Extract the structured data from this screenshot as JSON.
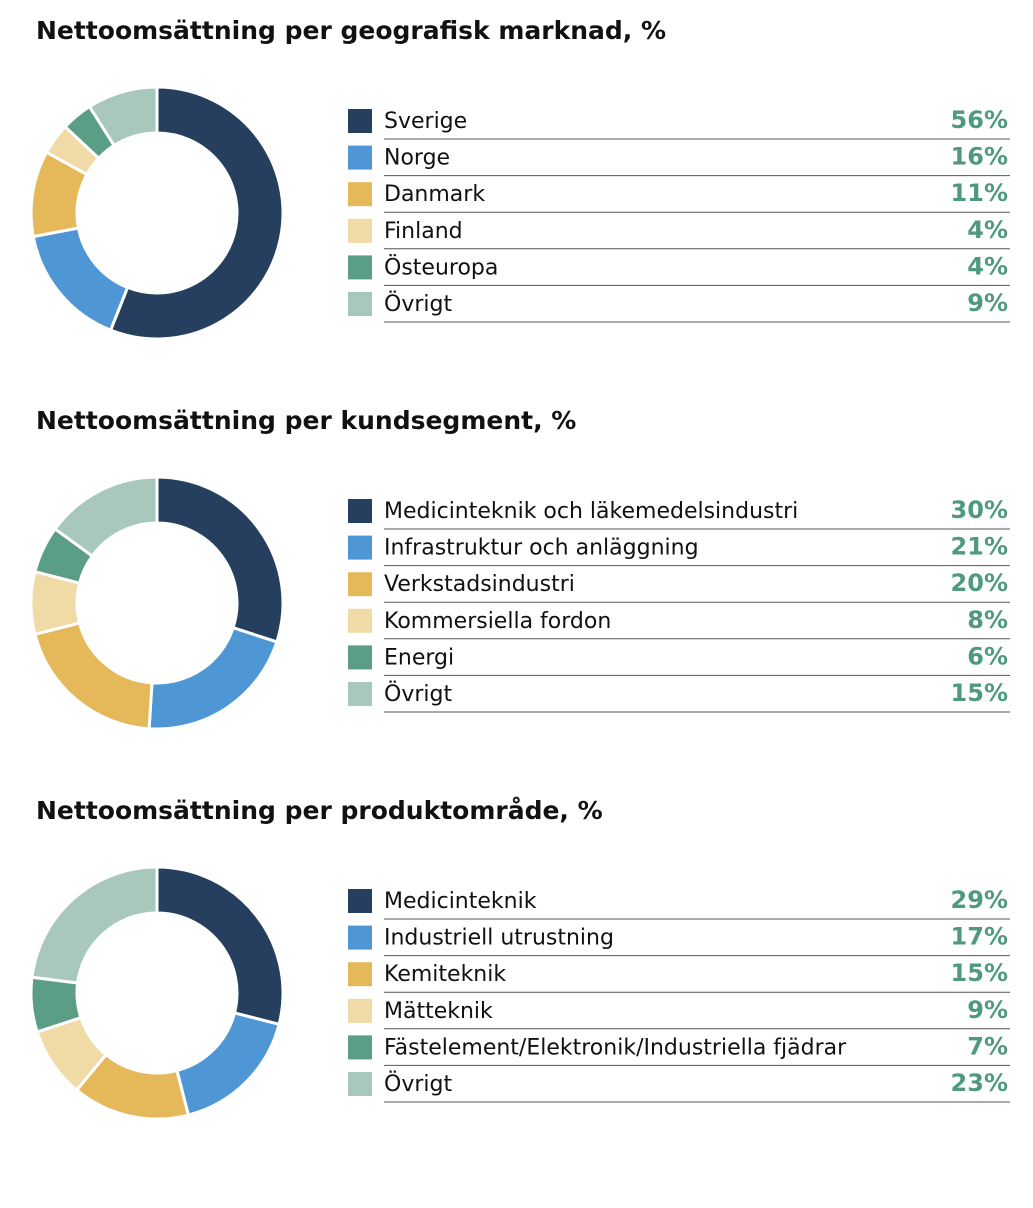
{
  "chart_data": [
    {
      "type": "pie",
      "title": "Nettoomsättning per geografisk marknad, %",
      "categories": [
        "Sverige",
        "Norge",
        "Danmark",
        "Finland",
        "Östeuropa",
        "Övrigt"
      ],
      "values": [
        56,
        16,
        11,
        4,
        4,
        9
      ],
      "value_labels": [
        "56%",
        "16%",
        "11%",
        "4%",
        "4%",
        "9%"
      ],
      "colors": [
        "#263f5e",
        "#4f97d4",
        "#e5b95a",
        "#f0dba6",
        "#5a9e86",
        "#a9c8bd"
      ]
    },
    {
      "type": "pie",
      "title": "Nettoomsättning per kundsegment, %",
      "categories": [
        "Medicinteknik och läkemedelsindustri",
        "Infrastruktur och anläggning",
        "Verkstadsindustri",
        "Kommersiella fordon",
        "Energi",
        "Övrigt"
      ],
      "values": [
        30,
        21,
        20,
        8,
        6,
        15
      ],
      "value_labels": [
        "30%",
        "21%",
        "20%",
        "8%",
        "6%",
        "15%"
      ],
      "colors": [
        "#263f5e",
        "#4f97d4",
        "#e5b95a",
        "#f0dba6",
        "#5a9e86",
        "#a9c8bd"
      ]
    },
    {
      "type": "pie",
      "title": "Nettoomsättning per produktområde, %",
      "categories": [
        "Medicinteknik",
        "Industriell utrustning",
        "Kemiteknik",
        "Mätteknik",
        "Fästelement/Elektronik/Industriella fjädrar",
        "Övrigt"
      ],
      "values": [
        29,
        17,
        15,
        9,
        7,
        23
      ],
      "value_labels": [
        "29%",
        "17%",
        "15%",
        "9%",
        "7%",
        "23%"
      ],
      "colors": [
        "#263f5e",
        "#4f97d4",
        "#e5b95a",
        "#f0dba6",
        "#5a9e86",
        "#a9c8bd"
      ]
    }
  ]
}
